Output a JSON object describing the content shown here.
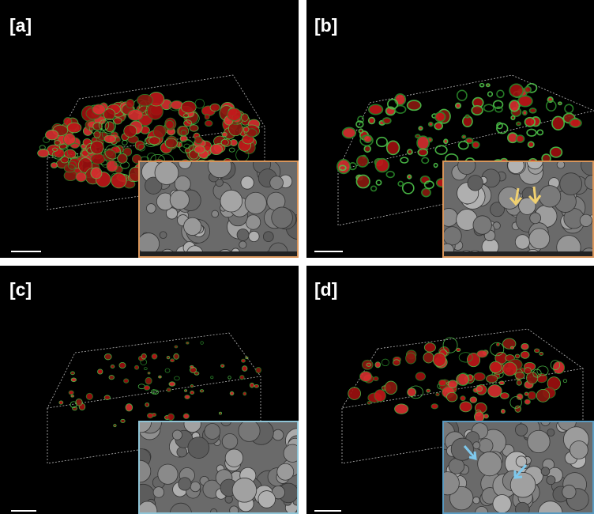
{
  "panels": [
    {
      "label": "[a]"
    },
    {
      "label": "[b]"
    },
    {
      "label": "[c]"
    },
    {
      "label": "[d]"
    }
  ]
}
